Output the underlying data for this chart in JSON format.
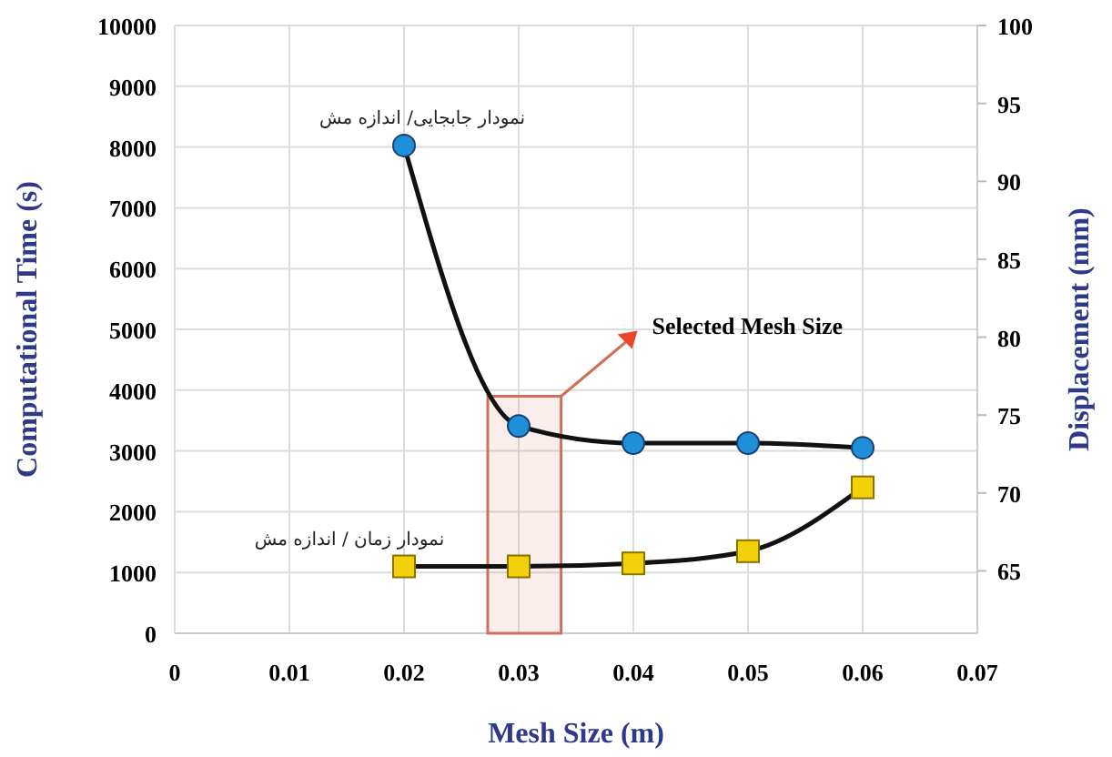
{
  "chart_data": {
    "type": "line",
    "xlabel": "Mesh Size (m)",
    "ylabel": "Computational Time (s)",
    "y2label": "Displacement (mm)",
    "x": [
      0.02,
      0.03,
      0.04,
      0.05,
      0.06
    ],
    "xlim": [
      0,
      0.07
    ],
    "xticks": [
      0,
      0.01,
      0.02,
      0.03,
      0.04,
      0.05,
      0.06,
      0.07
    ],
    "ylim": [
      0,
      10000
    ],
    "yticks": [
      0,
      1000,
      2000,
      3000,
      4000,
      5000,
      6000,
      7000,
      8000,
      9000,
      10000
    ],
    "y2lim": [
      61,
      100
    ],
    "y2ticks": [
      65,
      70,
      75,
      80,
      85,
      90,
      95,
      100
    ],
    "series": [
      {
        "name": "نمودار جابجایی/ اندازه مش",
        "color": "#1e8fd8",
        "marker": "circle",
        "axis": "y2",
        "values": [
          92.3,
          74.3,
          73.2,
          73.2,
          72.9
        ]
      },
      {
        "name": "نمودار زمان / اندازه مش",
        "color": "#f2d00a",
        "marker": "square",
        "values": [
          1100,
          1100,
          1150,
          1350,
          2400
        ]
      }
    ],
    "bands": [
      {
        "axis": "x",
        "from": 0.0273,
        "to": 0.0337,
        "label": "Selected Mesh Size",
        "color": "#d0705a"
      }
    ],
    "grid": true
  }
}
